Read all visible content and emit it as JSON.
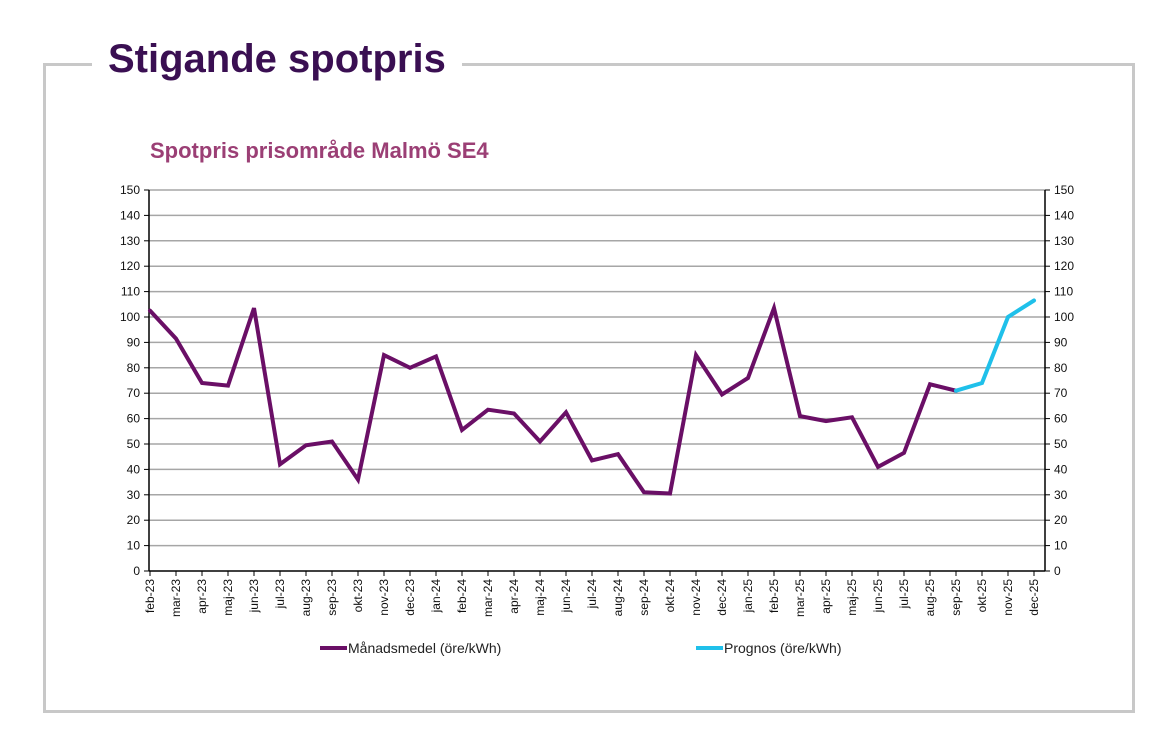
{
  "page": {
    "title": "Stigande spotpris"
  },
  "chart_data": {
    "type": "line",
    "title": "Spotpris prisområde Malmö SE4",
    "xlabel": "",
    "ylabel": "",
    "ylim": [
      0,
      150
    ],
    "yticks": [
      0,
      10,
      20,
      30,
      40,
      50,
      60,
      70,
      80,
      90,
      100,
      110,
      120,
      130,
      140,
      150
    ],
    "secondary_y": true,
    "grid": true,
    "legend_position": "bottom",
    "categories": [
      "feb-23",
      "mar-23",
      "apr-23",
      "maj-23",
      "jun-23",
      "jul-23",
      "aug-23",
      "sep-23",
      "okt-23",
      "nov-23",
      "dec-23",
      "jan-24",
      "feb-24",
      "mar-24",
      "apr-24",
      "maj-24",
      "jun-24",
      "jul-24",
      "aug-24",
      "sep-24",
      "okt-24",
      "nov-24",
      "dec-24",
      "jan-25",
      "feb-25",
      "mar-25",
      "apr-25",
      "maj-25",
      "jun-25",
      "jul-25",
      "aug-25",
      "sep-25",
      "okt-25",
      "nov-25",
      "dec-25"
    ],
    "series": [
      {
        "name": "Månadsmedel (öre/kWh)",
        "color": "#6a0f66",
        "values": [
          102.5,
          91.5,
          74,
          73,
          103.5,
          42,
          49.5,
          51,
          36,
          85,
          80,
          84.5,
          55.5,
          63.5,
          62,
          51,
          62.5,
          43.5,
          46,
          31,
          30.5,
          85,
          69.5,
          76,
          103.5,
          61,
          59,
          60.5,
          41,
          46.5,
          73.5,
          71,
          null,
          null,
          null
        ]
      },
      {
        "name": "Prognos (öre/kWh)",
        "color": "#1fc0ea",
        "values": [
          null,
          null,
          null,
          null,
          null,
          null,
          null,
          null,
          null,
          null,
          null,
          null,
          null,
          null,
          null,
          null,
          null,
          null,
          null,
          null,
          null,
          null,
          null,
          null,
          null,
          null,
          null,
          null,
          null,
          null,
          null,
          71,
          74,
          100,
          106.5
        ]
      }
    ]
  }
}
